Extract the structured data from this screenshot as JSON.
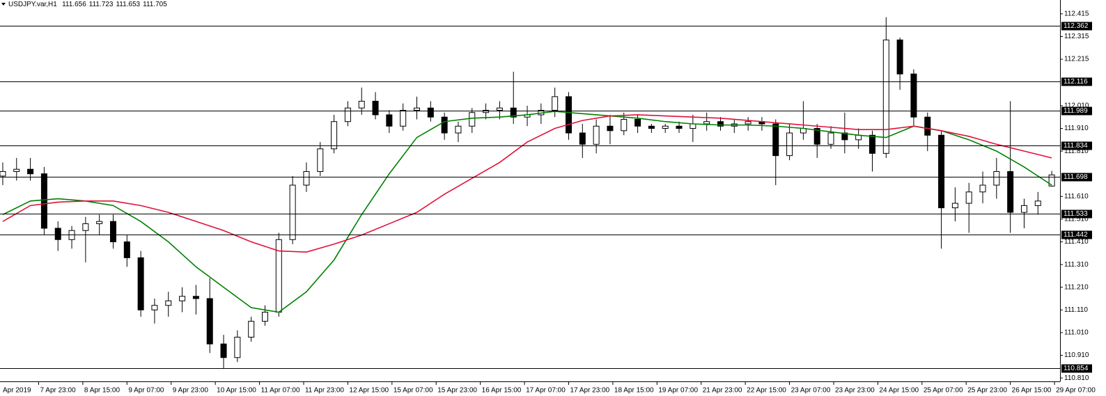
{
  "chart_data": {
    "type": "candlestick",
    "title": "USDJPY.var,H1",
    "x": [
      -13,
      -8,
      -3,
      2,
      7,
      12,
      17,
      22,
      27,
      32,
      37,
      42,
      47,
      52,
      57,
      62,
      67,
      72,
      77,
      82,
      87,
      92,
      97,
      102,
      107,
      112,
      117,
      122,
      127,
      132,
      137,
      142,
      147,
      152,
      157,
      162,
      167,
      172,
      177,
      182,
      187,
      192,
      197,
      202,
      207,
      212,
      217,
      222,
      227,
      232,
      237,
      242,
      247,
      252,
      257,
      262,
      267,
      272,
      277,
      282,
      287,
      292,
      297,
      302,
      307,
      312,
      317,
      322,
      327,
      332,
      337,
      342,
      347,
      352,
      357,
      362,
      367
    ],
    "open": [
      111.7,
      111.72,
      111.73,
      111.71,
      111.47,
      111.42,
      111.46,
      111.49,
      111.5,
      111.41,
      111.34,
      111.11,
      111.13,
      111.15,
      111.17,
      111.16,
      110.96,
      110.9,
      110.99,
      111.06,
      111.1,
      111.42,
      111.66,
      111.72,
      111.82,
      111.94,
      112.0,
      112.03,
      111.97,
      111.92,
      111.99,
      112.0,
      111.96,
      111.89,
      111.92,
      111.98,
      111.99,
      112.0,
      111.96,
      111.97,
      111.99,
      112.05,
      111.89,
      111.84,
      111.92,
      111.9,
      111.95,
      111.92,
      111.91,
      111.92,
      111.91,
      111.93,
      111.94,
      111.92,
      111.93,
      111.94,
      111.93,
      111.79,
      111.89,
      111.91,
      111.84,
      111.89,
      111.86,
      111.88,
      111.8,
      112.3,
      112.15,
      111.96,
      111.88,
      111.56,
      111.58,
      111.63,
      111.66,
      111.72,
      111.54,
      111.57,
      111.656
    ],
    "high": [
      111.76,
      111.78,
      111.78,
      111.74,
      111.5,
      111.48,
      111.52,
      111.53,
      111.53,
      111.44,
      111.37,
      111.16,
      111.19,
      111.21,
      111.22,
      111.25,
      111.0,
      111.02,
      111.08,
      111.13,
      111.45,
      111.7,
      111.76,
      111.85,
      111.97,
      112.03,
      112.09,
      112.07,
      111.99,
      112.02,
      112.05,
      112.03,
      111.98,
      111.94,
      112.0,
      112.02,
      112.03,
      112.16,
      112.01,
      112.02,
      112.09,
      112.07,
      111.93,
      111.95,
      111.97,
      111.98,
      111.97,
      111.93,
      111.93,
      111.94,
      111.97,
      111.98,
      111.96,
      111.95,
      111.96,
      111.96,
      111.95,
      111.93,
      112.03,
      111.93,
      111.92,
      111.98,
      111.91,
      111.9,
      112.4,
      112.31,
      112.17,
      111.98,
      111.9,
      111.65,
      111.67,
      111.72,
      111.78,
      112.03,
      111.6,
      111.63,
      111.723
    ],
    "low": [
      111.66,
      111.68,
      111.68,
      111.44,
      111.37,
      111.38,
      111.32,
      111.44,
      111.38,
      111.3,
      111.08,
      111.05,
      111.08,
      111.1,
      111.09,
      110.92,
      110.85,
      110.88,
      110.97,
      111.04,
      111.08,
      111.4,
      111.63,
      111.7,
      111.8,
      111.92,
      111.97,
      111.95,
      111.89,
      111.9,
      111.95,
      111.94,
      111.86,
      111.85,
      111.89,
      111.95,
      111.95,
      111.93,
      111.92,
      111.93,
      111.96,
      111.86,
      111.78,
      111.8,
      111.84,
      111.88,
      111.89,
      111.89,
      111.89,
      111.89,
      111.85,
      111.9,
      111.9,
      111.89,
      111.9,
      111.9,
      111.66,
      111.77,
      111.86,
      111.78,
      111.82,
      111.8,
      111.82,
      111.72,
      111.78,
      112.08,
      111.92,
      111.81,
      111.38,
      111.5,
      111.45,
      111.58,
      111.6,
      111.45,
      111.47,
      111.53,
      111.653
    ],
    "close": [
      111.72,
      111.73,
      111.71,
      111.47,
      111.42,
      111.46,
      111.49,
      111.5,
      111.41,
      111.34,
      111.11,
      111.13,
      111.15,
      111.17,
      111.16,
      110.96,
      110.9,
      110.99,
      111.06,
      111.1,
      111.42,
      111.66,
      111.72,
      111.82,
      111.94,
      112.0,
      112.03,
      111.97,
      111.92,
      111.99,
      112.0,
      111.96,
      111.89,
      111.92,
      111.98,
      111.99,
      112.0,
      111.96,
      111.97,
      111.99,
      112.05,
      111.89,
      111.84,
      111.92,
      111.9,
      111.95,
      111.92,
      111.91,
      111.92,
      111.91,
      111.93,
      111.94,
      111.92,
      111.93,
      111.94,
      111.93,
      111.79,
      111.89,
      111.91,
      111.84,
      111.89,
      111.86,
      111.88,
      111.8,
      112.3,
      112.15,
      111.96,
      111.88,
      111.56,
      111.58,
      111.63,
      111.66,
      111.72,
      111.54,
      111.57,
      111.59,
      111.705
    ],
    "lines": [
      {
        "color": "#008000",
        "x": [
          -13,
          -3,
          7,
          17,
          27,
          37,
          47,
          57,
          67,
          77,
          87,
          97,
          107,
          117,
          127,
          137,
          147,
          157,
          167,
          177,
          187,
          197,
          207,
          217,
          227,
          237,
          247,
          257,
          267,
          277,
          287,
          297,
          307,
          317,
          327,
          337,
          347,
          357,
          367
        ],
        "values": [
          111.53,
          111.59,
          111.6,
          111.59,
          111.57,
          111.5,
          111.41,
          111.3,
          111.21,
          111.12,
          111.1,
          111.19,
          111.33,
          111.53,
          111.71,
          111.87,
          111.94,
          111.955,
          111.96,
          111.97,
          111.985,
          111.975,
          111.965,
          111.955,
          111.94,
          111.93,
          111.925,
          111.925,
          111.92,
          111.91,
          111.895,
          111.88,
          111.87,
          111.92,
          111.9,
          111.86,
          111.81,
          111.74,
          111.66
        ]
      },
      {
        "color": "#e0103a",
        "x": [
          -13,
          -3,
          7,
          17,
          27,
          37,
          47,
          57,
          67,
          77,
          87,
          97,
          107,
          117,
          127,
          137,
          147,
          157,
          167,
          177,
          187,
          197,
          207,
          217,
          227,
          237,
          247,
          257,
          267,
          277,
          287,
          297,
          307,
          317,
          327,
          337,
          347,
          357,
          367
        ],
        "values": [
          111.5,
          111.57,
          111.585,
          111.59,
          111.59,
          111.57,
          111.54,
          111.5,
          111.46,
          111.41,
          111.37,
          111.365,
          111.4,
          111.44,
          111.49,
          111.54,
          111.62,
          111.69,
          111.76,
          111.85,
          111.91,
          111.945,
          111.965,
          111.97,
          111.965,
          111.96,
          111.955,
          111.945,
          111.935,
          111.925,
          111.915,
          111.905,
          111.905,
          111.92,
          111.9,
          111.875,
          111.84,
          111.81,
          111.78
        ]
      }
    ],
    "levels": [
      112.362,
      112.116,
      111.989,
      111.834,
      111.698,
      111.533,
      111.442,
      110.854
    ],
    "xlim": [
      -14,
      370
    ],
    "xticks": [
      {
        "value": -16,
        "label": "Apr 2019"
      },
      {
        "value": 0,
        "label": "7 Apr 23:00"
      },
      {
        "value": 16,
        "label": "8 Apr 15:00"
      },
      {
        "value": 32,
        "label": "9 Apr 07:00"
      },
      {
        "value": 48,
        "label": "9 Apr 23:00"
      },
      {
        "value": 64,
        "label": "10 Apr 15:00"
      },
      {
        "value": 80,
        "label": "11 Apr 07:00"
      },
      {
        "value": 96,
        "label": "11 Apr 23:00"
      },
      {
        "value": 112,
        "label": "12 Apr 15:00"
      },
      {
        "value": 128,
        "label": "15 Apr 07:00"
      },
      {
        "value": 144,
        "label": "15 Apr 23:00"
      },
      {
        "value": 160,
        "label": "16 Apr 15:00"
      },
      {
        "value": 176,
        "label": "17 Apr 07:00"
      },
      {
        "value": 192,
        "label": "17 Apr 23:00"
      },
      {
        "value": 208,
        "label": "18 Apr 15:00"
      },
      {
        "value": 224,
        "label": "19 Apr 07:00"
      },
      {
        "value": 240,
        "label": "21 Apr 23:00"
      },
      {
        "value": 256,
        "label": "22 Apr 15:00"
      },
      {
        "value": 272,
        "label": "23 Apr 07:00"
      },
      {
        "value": 288,
        "label": "23 Apr 23:00"
      },
      {
        "value": 304,
        "label": "24 Apr 15:00"
      },
      {
        "value": 320,
        "label": "25 Apr 07:00"
      },
      {
        "value": 336,
        "label": "25 Apr 23:00"
      },
      {
        "value": 352,
        "label": "26 Apr 15:00"
      },
      {
        "value": 368,
        "label": "29 Apr 07:00"
      }
    ],
    "ylim": [
      110.795,
      112.476
    ],
    "yticks": [
      112.415,
      112.315,
      112.215,
      {
        "value": 112.01,
        "label": "112.010"
      },
      {
        "value": 111.91,
        "label": "111.910"
      },
      {
        "value": 111.81,
        "label": "111.810"
      },
      {
        "value": 111.61,
        "label": "111.610"
      },
      {
        "value": 111.51,
        "label": "111.510"
      },
      {
        "value": 111.41,
        "label": "111.410"
      },
      {
        "value": 111.31,
        "label": "111.310"
      },
      {
        "value": 111.21,
        "label": "111.210"
      },
      {
        "value": 111.11,
        "label": "111.110"
      },
      {
        "value": 111.01,
        "label": "111.010"
      },
      {
        "value": 110.91,
        "label": "110.910"
      },
      {
        "value": 110.81,
        "label": "110.810"
      }
    ]
  }
}
